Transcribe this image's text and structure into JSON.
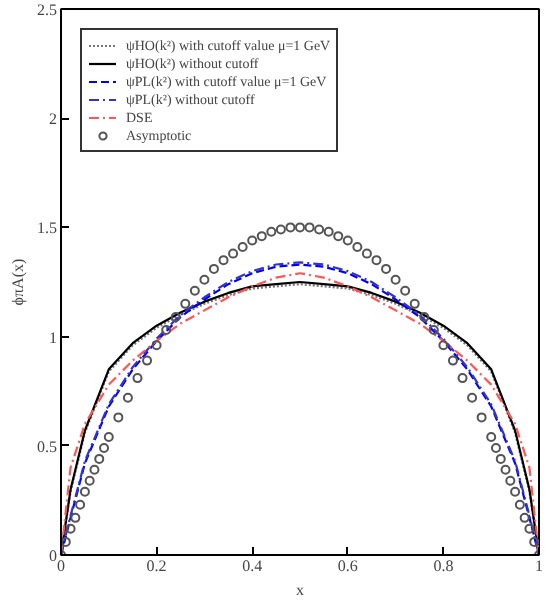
{
  "chart_data": {
    "type": "line",
    "xlabel": "x",
    "ylabel": "ϕπA(x)",
    "x": [
      0,
      0.02,
      0.05,
      0.1,
      0.15,
      0.2,
      0.25,
      0.3,
      0.35,
      0.4,
      0.45,
      0.5,
      0.55,
      0.6,
      0.65,
      0.7,
      0.75,
      0.8,
      0.85,
      0.9,
      0.95,
      0.98,
      1
    ],
    "xlim": [
      0,
      1
    ],
    "xticks": [
      0,
      0.2,
      0.4,
      0.6,
      0.8,
      1
    ],
    "ylim": [
      0,
      2.5
    ],
    "yticks": [
      0,
      0.5,
      1,
      1.5,
      2,
      2.5
    ],
    "grid": false,
    "legend": "top left",
    "series": [
      {
        "name": "ψHO(k²) with cutoff value μ=1 GeV",
        "color": "#777777",
        "line_style": "dotted",
        "values": [
          0,
          0.29,
          0.56,
          0.84,
          0.96,
          1.04,
          1.1,
          1.15,
          1.19,
          1.22,
          1.23,
          1.24,
          1.23,
          1.22,
          1.19,
          1.15,
          1.1,
          1.04,
          0.96,
          0.84,
          0.56,
          0.29,
          0
        ]
      },
      {
        "name": "ψHO(k²) without cutoff",
        "color": "#000000",
        "line_style": "solid",
        "values": [
          0,
          0.3,
          0.57,
          0.85,
          0.97,
          1.05,
          1.11,
          1.16,
          1.2,
          1.23,
          1.24,
          1.25,
          1.24,
          1.23,
          1.2,
          1.16,
          1.11,
          1.05,
          0.97,
          0.85,
          0.57,
          0.3,
          0
        ]
      },
      {
        "name": "ψPL(k²) with cutoff value μ=1 GeV",
        "color": "#0000ff",
        "line_style": "dashed",
        "values": [
          0,
          0.17,
          0.42,
          0.68,
          0.85,
          0.98,
          1.09,
          1.17,
          1.24,
          1.29,
          1.32,
          1.33,
          1.32,
          1.29,
          1.24,
          1.17,
          1.09,
          0.98,
          0.85,
          0.68,
          0.42,
          0.17,
          0
        ]
      },
      {
        "name": "ψPL(k²) without cutoff",
        "color": "#3333cc",
        "line_style": "dashdot",
        "values": [
          0,
          0.18,
          0.43,
          0.69,
          0.86,
          0.99,
          1.1,
          1.18,
          1.25,
          1.3,
          1.33,
          1.34,
          1.33,
          1.3,
          1.25,
          1.18,
          1.1,
          0.99,
          0.86,
          0.69,
          0.43,
          0.18,
          0
        ]
      },
      {
        "name": "DSE",
        "color": "#ff5555",
        "line_style": "dashdot",
        "values": [
          0,
          0.4,
          0.6,
          0.78,
          0.89,
          0.98,
          1.06,
          1.12,
          1.18,
          1.23,
          1.27,
          1.29,
          1.27,
          1.23,
          1.18,
          1.12,
          1.06,
          0.98,
          0.89,
          0.78,
          0.6,
          0.4,
          0
        ]
      },
      {
        "name": "Asymptotic",
        "type": "scatter",
        "marker": "circle",
        "color": "#555555",
        "x": [
          0,
          0.01,
          0.02,
          0.03,
          0.04,
          0.05,
          0.06,
          0.07,
          0.08,
          0.09,
          0.1,
          0.12,
          0.14,
          0.16,
          0.18,
          0.2,
          0.22,
          0.24,
          0.26,
          0.28,
          0.3,
          0.32,
          0.34,
          0.36,
          0.38,
          0.4,
          0.42,
          0.44,
          0.46,
          0.48,
          0.5,
          0.52,
          0.54,
          0.56,
          0.58,
          0.6,
          0.62,
          0.64,
          0.66,
          0.68,
          0.7,
          0.72,
          0.74,
          0.76,
          0.78,
          0.8,
          0.82,
          0.84,
          0.86,
          0.88,
          0.9,
          0.91,
          0.92,
          0.93,
          0.94,
          0.95,
          0.96,
          0.97,
          0.98,
          0.99,
          1
        ],
        "values": [
          0,
          0.06,
          0.12,
          0.17,
          0.23,
          0.29,
          0.34,
          0.39,
          0.44,
          0.49,
          0.54,
          0.63,
          0.72,
          0.81,
          0.89,
          0.96,
          1.03,
          1.09,
          1.15,
          1.21,
          1.26,
          1.31,
          1.35,
          1.38,
          1.41,
          1.44,
          1.46,
          1.48,
          1.49,
          1.5,
          1.5,
          1.5,
          1.49,
          1.48,
          1.46,
          1.44,
          1.41,
          1.38,
          1.35,
          1.31,
          1.26,
          1.21,
          1.15,
          1.09,
          1.03,
          0.96,
          0.89,
          0.81,
          0.72,
          0.63,
          0.54,
          0.49,
          0.44,
          0.39,
          0.34,
          0.29,
          0.23,
          0.17,
          0.12,
          0.06,
          0
        ]
      }
    ]
  }
}
